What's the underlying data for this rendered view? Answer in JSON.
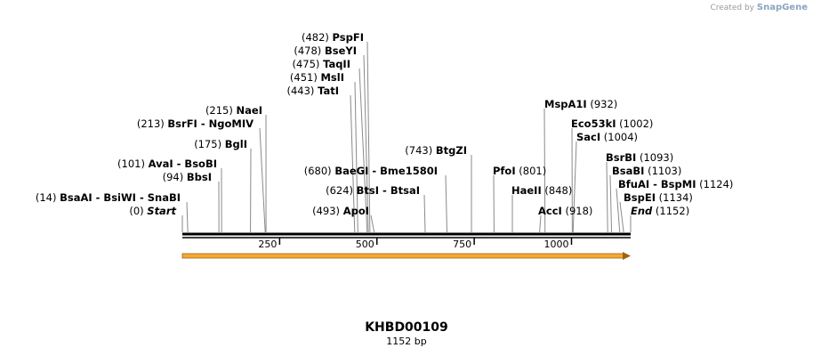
{
  "watermark": {
    "prefix": "Created by",
    "brand": "SnapGene"
  },
  "map": {
    "name": "KHBD00109",
    "length_label": "1152 bp",
    "length": 1152
  },
  "ticks": [
    {
      "value": 250,
      "label": "250"
    },
    {
      "value": 500,
      "label": "500"
    },
    {
      "value": 750,
      "label": "750"
    },
    {
      "value": 1000,
      "label": "1000"
    }
  ],
  "sites": [
    {
      "pos": "(482)",
      "names": [
        "PspFI"
      ],
      "bp": 482
    },
    {
      "pos": "(478)",
      "names": [
        "BseYI"
      ],
      "bp": 478
    },
    {
      "pos": "(475)",
      "names": [
        "TaqII"
      ],
      "bp": 475
    },
    {
      "pos": "(451)",
      "names": [
        "MslI"
      ],
      "bp": 451
    },
    {
      "pos": "(443)",
      "names": [
        "TatI"
      ],
      "bp": 443
    },
    {
      "pos": "(215)",
      "names": [
        "NaeI"
      ],
      "bp": 215
    },
    {
      "pos": "(213)",
      "names": [
        "BsrFI",
        "NgoMIV"
      ],
      "bp": 213
    },
    {
      "pos": "(175)",
      "names": [
        "BglI"
      ],
      "bp": 175
    },
    {
      "pos": "(743)",
      "names": [
        "BtgZI"
      ],
      "bp": 743
    },
    {
      "pos": "(101)",
      "names": [
        "AvaI",
        "BsoBI"
      ],
      "bp": 101
    },
    {
      "pos": "(94)",
      "names": [
        "BbsI"
      ],
      "bp": 94
    },
    {
      "pos": "(680)",
      "names": [
        "BaeGI",
        "Bme1580I"
      ],
      "bp": 680
    },
    {
      "pos": "(624)",
      "names": [
        "BtsI",
        "BtsaI"
      ],
      "bp": 624
    },
    {
      "pos": "(14)",
      "names": [
        "BsaAI",
        "BsiWI",
        "SnaBI"
      ],
      "bp": 14
    },
    {
      "pos": "(0)",
      "names": [
        "Start"
      ],
      "bp": 0,
      "italic": true
    },
    {
      "pos": "(493)",
      "names": [
        "ApoI"
      ],
      "bp": 493
    },
    {
      "pos": "(932)",
      "names": [
        "MspA1I"
      ],
      "bp": 932
    },
    {
      "pos": "(1002)",
      "names": [
        "Eco53kI"
      ],
      "bp": 1002
    },
    {
      "pos": "(1004)",
      "names": [
        "SacI"
      ],
      "bp": 1004
    },
    {
      "pos": "(801)",
      "names": [
        "PfoI"
      ],
      "bp": 801
    },
    {
      "pos": "(848)",
      "names": [
        "HaeII"
      ],
      "bp": 848
    },
    {
      "pos": "(918)",
      "names": [
        "AccI"
      ],
      "bp": 918
    },
    {
      "pos": "(1093)",
      "names": [
        "BsrBI"
      ],
      "bp": 1093
    },
    {
      "pos": "(1103)",
      "names": [
        "BsaBI"
      ],
      "bp": 1103
    },
    {
      "pos": "(1124)",
      "names": [
        "BfuAI",
        "BspMI"
      ],
      "bp": 1124
    },
    {
      "pos": "(1134)",
      "names": [
        "BspEI"
      ],
      "bp": 1134
    },
    {
      "pos": "(1152)",
      "names": [
        "End"
      ],
      "bp": 1152,
      "italic": true
    }
  ],
  "feature": {
    "color": "#f3a934",
    "direction": "forward"
  }
}
